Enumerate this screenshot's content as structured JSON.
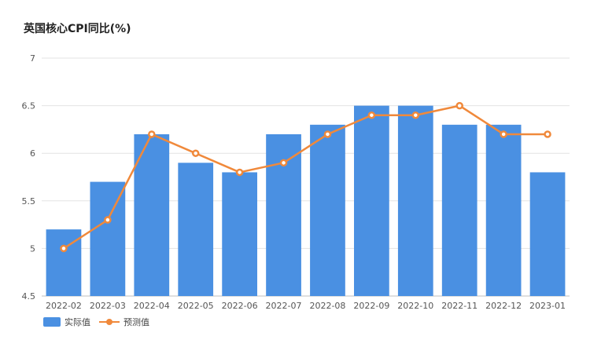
{
  "chart_data": {
    "type": "bar",
    "title": "英国核心CPI同比(%)",
    "categories": [
      "2022-02",
      "2022-03",
      "2022-04",
      "2022-05",
      "2022-06",
      "2022-07",
      "2022-08",
      "2022-09",
      "2022-10",
      "2022-11",
      "2022-12",
      "2023-01"
    ],
    "series": [
      {
        "name": "实际值",
        "type": "bar",
        "color": "#4a90e2",
        "values": [
          5.2,
          5.7,
          6.2,
          5.9,
          5.8,
          6.2,
          6.3,
          6.5,
          6.5,
          6.3,
          6.3,
          5.8
        ]
      },
      {
        "name": "预测值",
        "type": "line",
        "color": "#f0893b",
        "values": [
          5.0,
          5.3,
          6.2,
          6.0,
          5.8,
          5.9,
          6.2,
          6.4,
          6.4,
          6.5,
          6.2,
          6.2
        ]
      }
    ],
    "ylim": [
      4.5,
      7
    ],
    "yticks": [
      "4.5",
      "5",
      "5.5",
      "6",
      "6.5",
      "7"
    ],
    "xlabel": "",
    "ylabel": "",
    "grid": true,
    "legend": "bottom-left"
  }
}
